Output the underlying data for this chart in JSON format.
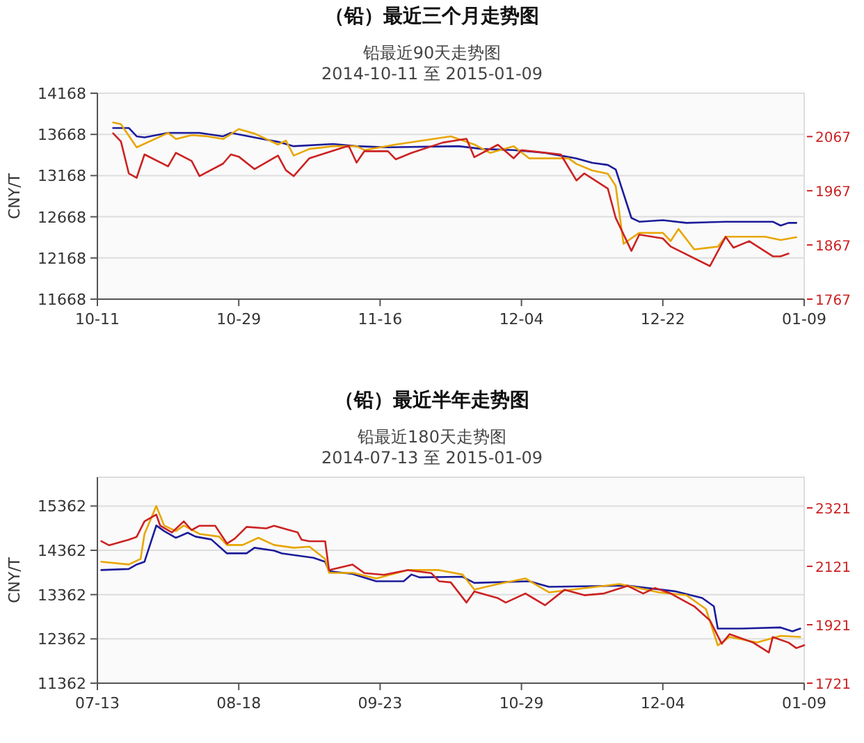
{
  "chart_data": [
    {
      "type": "line",
      "title": "（铅）最近三个月走势图",
      "subtitle": "铅最近90天走势图\n2014-10-11 至 2015-01-09",
      "ylabel": "CNY/T",
      "xlim": [
        "2014-10-11",
        "2015-01-09"
      ],
      "xticks": [
        {
          "value": "2014-10-11",
          "label": "10-11"
        },
        {
          "value": "2014-10-29",
          "label": "10-29"
        },
        {
          "value": "2014-11-16",
          "label": "11-16"
        },
        {
          "value": "2014-12-04",
          "label": "12-04"
        },
        {
          "value": "2014-12-22",
          "label": "12-22"
        },
        {
          "value": "2015-01-09",
          "label": "01-09"
        }
      ],
      "ylim": [
        11668,
        14168
      ],
      "yticks": [
        11668,
        12168,
        12668,
        13168,
        13668,
        14168
      ],
      "y2lim": [
        1767,
        2147
      ],
      "y2ticks": [
        1767,
        1867,
        1967,
        2067
      ],
      "grid": "y",
      "marker": "none",
      "line_style": "solid",
      "series": [
        {
          "color": "#1c1c9a",
          "x": [
            "2014-10-13",
            "2014-10-15",
            "2014-10-16",
            "2014-10-17",
            "2014-10-20",
            "2014-10-24",
            "2014-10-27",
            "2014-10-28",
            "2014-11-01",
            "2014-11-03",
            "2014-11-05",
            "2014-11-10",
            "2014-11-13",
            "2014-11-17",
            "2014-11-26",
            "2014-11-29",
            "2014-12-03",
            "2014-12-07",
            "2014-12-09",
            "2014-12-11",
            "2014-12-13",
            "2014-12-15",
            "2014-12-16",
            "2014-12-18",
            "2014-12-19",
            "2014-12-22",
            "2014-12-25",
            "2014-12-30",
            "2015-01-05",
            "2015-01-06",
            "2015-01-07",
            "2015-01-08"
          ],
          "values": [
            13746,
            13746,
            13645,
            13632,
            13686,
            13686,
            13645,
            13686,
            13612,
            13578,
            13525,
            13552,
            13525,
            13511,
            13525,
            13491,
            13478,
            13444,
            13411,
            13377,
            13324,
            13297,
            13243,
            12654,
            12608,
            12627,
            12594,
            12608,
            12608,
            12561,
            12594,
            12594
          ]
        },
        {
          "color": "#e8a600",
          "x": [
            "2014-10-13",
            "2014-10-14",
            "2014-10-16",
            "2014-10-20",
            "2014-10-21",
            "2014-10-23",
            "2014-10-25",
            "2014-10-27",
            "2014-10-29",
            "2014-10-31",
            "2014-11-03",
            "2014-11-04",
            "2014-11-05",
            "2014-11-07",
            "2014-11-10",
            "2014-11-13",
            "2014-11-14",
            "2014-11-18",
            "2014-11-25",
            "2014-11-28",
            "2014-11-30",
            "2014-12-03",
            "2014-12-05",
            "2014-12-10",
            "2014-12-11",
            "2014-12-13",
            "2014-12-15",
            "2014-12-16",
            "2014-12-17",
            "2014-12-19",
            "2014-12-22",
            "2014-12-23",
            "2014-12-24",
            "2014-12-26",
            "2014-12-29",
            "2014-12-30",
            "2015-01-04",
            "2015-01-06",
            "2015-01-08"
          ],
          "values": [
            13813,
            13793,
            13511,
            13686,
            13612,
            13659,
            13645,
            13612,
            13733,
            13679,
            13545,
            13592,
            13411,
            13491,
            13525,
            13525,
            13478,
            13545,
            13645,
            13545,
            13444,
            13525,
            13377,
            13377,
            13310,
            13230,
            13190,
            13042,
            12339,
            12473,
            12473,
            12373,
            12520,
            12272,
            12305,
            12426,
            12426,
            12386,
            12420
          ]
        },
        {
          "color": "#cc2222",
          "axis": "y2",
          "x": [
            "2014-10-13",
            "2014-10-14",
            "2014-10-15",
            "2014-10-16",
            "2014-10-17",
            "2014-10-20",
            "2014-10-21",
            "2014-10-23",
            "2014-10-24",
            "2014-10-27",
            "2014-10-28",
            "2014-10-29",
            "2014-10-31",
            "2014-11-03",
            "2014-11-04",
            "2014-11-05",
            "2014-11-07",
            "2014-11-12",
            "2014-11-13",
            "2014-11-14",
            "2014-11-17",
            "2014-11-18",
            "2014-11-20",
            "2014-11-24",
            "2014-11-27",
            "2014-11-28",
            "2014-12-01",
            "2014-12-03",
            "2014-12-04",
            "2014-12-09",
            "2014-12-11",
            "2014-12-12",
            "2014-12-15",
            "2014-12-16",
            "2014-12-18",
            "2014-12-19",
            "2014-12-22",
            "2014-12-23",
            "2014-12-28",
            "2014-12-30",
            "2014-12-31",
            "2015-01-02",
            "2015-01-05",
            "2015-01-06",
            "2015-01-07"
          ],
          "values": [
            2073,
            2058,
            1999,
            1991,
            2034,
            2012,
            2037,
            2022,
            1994,
            2017,
            2034,
            2030,
            2007,
            2032,
            2005,
            1994,
            2027,
            2050,
            2019,
            2040,
            2040,
            2025,
            2037,
            2056,
            2063,
            2029,
            2052,
            2027,
            2042,
            2034,
            1986,
            1999,
            1971,
            1917,
            1856,
            1886,
            1879,
            1864,
            1828,
            1882,
            1862,
            1874,
            1846,
            1846,
            1851
          ]
        }
      ]
    },
    {
      "type": "line",
      "title": "（铅）最近半年走势图",
      "subtitle": "铅最近180天走势图\n2014-07-13 至 2015-01-09",
      "ylabel": "CNY/T",
      "xlim": [
        "2014-07-13",
        "2015-01-09"
      ],
      "xticks": [
        {
          "value": "2014-07-13",
          "label": "07-13"
        },
        {
          "value": "2014-08-18",
          "label": "08-18"
        },
        {
          "value": "2014-09-23",
          "label": "09-23"
        },
        {
          "value": "2014-10-29",
          "label": "10-29"
        },
        {
          "value": "2014-12-04",
          "label": "12-04"
        },
        {
          "value": "2015-01-09",
          "label": "01-09"
        }
      ],
      "ylim": [
        11362,
        16012
      ],
      "yticks": [
        11362,
        12362,
        13362,
        14362,
        15362
      ],
      "y2lim": [
        1721,
        2426
      ],
      "y2ticks": [
        1721,
        1921,
        2121,
        2321
      ],
      "grid": "y",
      "marker": "none",
      "line_style": "solid",
      "series": [
        {
          "color": "#1c1c9a",
          "x": [
            "2014-07-14",
            "2014-07-21",
            "2014-07-23",
            "2014-07-25",
            "2014-07-28",
            "2014-07-30",
            "2014-08-02",
            "2014-08-05",
            "2014-08-07",
            "2014-08-11",
            "2014-08-15",
            "2014-08-20",
            "2014-08-22",
            "2014-08-27",
            "2014-08-29",
            "2014-09-06",
            "2014-09-09",
            "2014-09-10",
            "2014-09-16",
            "2014-09-22",
            "2014-09-29",
            "2014-10-01",
            "2014-10-03",
            "2014-10-14",
            "2014-10-17",
            "2014-10-31",
            "2014-11-05",
            "2014-11-25",
            "2014-12-07",
            "2014-12-14",
            "2014-12-17",
            "2014-12-18",
            "2014-12-24",
            "2015-01-03",
            "2015-01-06",
            "2015-01-08"
          ],
          "values": [
            13916,
            13941,
            14042,
            14104,
            14922,
            14796,
            14645,
            14759,
            14671,
            14608,
            14293,
            14293,
            14419,
            14356,
            14293,
            14193,
            14104,
            13891,
            13828,
            13664,
            13664,
            13815,
            13752,
            13765,
            13626,
            13664,
            13538,
            13564,
            13438,
            13287,
            13098,
            12595,
            12595,
            12620,
            12532,
            12595
          ]
        },
        {
          "color": "#e8a600",
          "x": [
            "2014-07-14",
            "2014-07-21",
            "2014-07-24",
            "2014-07-25",
            "2014-07-28",
            "2014-07-30",
            "2014-08-02",
            "2014-08-04",
            "2014-08-08",
            "2014-08-13",
            "2014-08-15",
            "2014-08-19",
            "2014-08-23",
            "2014-08-27",
            "2014-09-01",
            "2014-09-05",
            "2014-09-09",
            "2014-09-10",
            "2014-09-16",
            "2014-09-22",
            "2014-09-30",
            "2014-10-08",
            "2014-10-14",
            "2014-10-17",
            "2014-10-23",
            "2014-10-30",
            "2014-11-05",
            "2014-11-23",
            "2014-12-03",
            "2014-12-10",
            "2014-12-15",
            "2014-12-18",
            "2014-12-21",
            "2014-12-28",
            "2015-01-03",
            "2015-01-08"
          ],
          "values": [
            14104,
            14042,
            14167,
            14733,
            15362,
            14922,
            14796,
            14922,
            14733,
            14671,
            14482,
            14482,
            14645,
            14482,
            14419,
            14444,
            14167,
            13853,
            13853,
            13727,
            13916,
            13916,
            13815,
            13475,
            13601,
            13727,
            13413,
            13601,
            13413,
            13349,
            13035,
            12217,
            12406,
            12280,
            12431,
            12406
          ]
        },
        {
          "color": "#cc2222",
          "axis": "y2",
          "x": [
            "2014-07-14",
            "2014-07-16",
            "2014-07-21",
            "2014-07-23",
            "2014-07-25",
            "2014-07-28",
            "2014-07-29",
            "2014-08-01",
            "2014-08-04",
            "2014-08-06",
            "2014-08-08",
            "2014-08-12",
            "2014-08-15",
            "2014-08-17",
            "2014-08-20",
            "2014-08-25",
            "2014-08-27",
            "2014-09-02",
            "2014-09-03",
            "2014-09-05",
            "2014-09-09",
            "2014-09-10",
            "2014-09-16",
            "2014-09-19",
            "2014-09-24",
            "2014-09-30",
            "2014-10-06",
            "2014-10-08",
            "2014-10-11",
            "2014-10-15",
            "2014-10-17",
            "2014-10-23",
            "2014-10-25",
            "2014-10-30",
            "2014-11-04",
            "2014-11-09",
            "2014-11-14",
            "2014-11-19",
            "2014-11-25",
            "2014-11-29",
            "2014-12-02",
            "2014-12-06",
            "2014-12-12",
            "2014-12-16",
            "2014-12-19",
            "2014-12-21",
            "2014-12-27",
            "2014-12-31",
            "2015-01-01",
            "2015-01-05",
            "2015-01-07",
            "2015-01-09"
          ],
          "values": [
            2207,
            2193,
            2212,
            2222,
            2275,
            2298,
            2260,
            2237,
            2275,
            2245,
            2260,
            2260,
            2199,
            2216,
            2256,
            2251,
            2260,
            2237,
            2212,
            2207,
            2207,
            2108,
            2127,
            2098,
            2092,
            2108,
            2098,
            2070,
            2066,
            1997,
            2035,
            2012,
            1997,
            2028,
            1988,
            2041,
            2022,
            2028,
            2054,
            2028,
            2047,
            2028,
            1984,
            1936,
            1856,
            1889,
            1860,
            1826,
            1879,
            1860,
            1841,
            1851
          ]
        }
      ]
    }
  ]
}
